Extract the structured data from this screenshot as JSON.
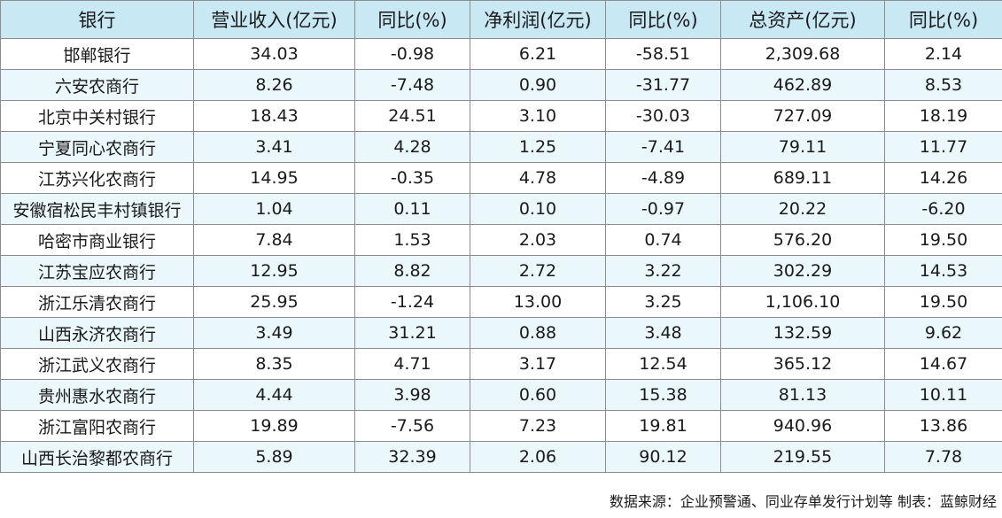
{
  "colors": {
    "header_bg": "#c8e8f3",
    "row_odd_bg": "#ffffff",
    "row_even_bg": "#eaf7fb",
    "border": "#8c8c8c"
  },
  "table": {
    "headers": [
      "银行",
      "营业收入(亿元)",
      "同比(%)",
      "净利润(亿元)",
      "同比(%)",
      "总资产(亿元)",
      "同比(%)"
    ],
    "rows": [
      [
        "邯郸银行",
        "34.03",
        "-0.98",
        "6.21",
        "-58.51",
        "2,309.68",
        "2.14"
      ],
      [
        "六安农商行",
        "8.26",
        "-7.48",
        "0.90",
        "-31.77",
        "462.89",
        "8.53"
      ],
      [
        "北京中关村银行",
        "18.43",
        "24.51",
        "3.10",
        "-30.03",
        "727.09",
        "18.19"
      ],
      [
        "宁夏同心农商行",
        "3.41",
        "4.28",
        "1.25",
        "-7.41",
        "79.11",
        "11.77"
      ],
      [
        "江苏兴化农商行",
        "14.95",
        "-0.35",
        "4.78",
        "-4.89",
        "689.11",
        "14.26"
      ],
      [
        "安徽宿松民丰村镇银行",
        "1.04",
        "0.11",
        "0.10",
        "-0.97",
        "20.22",
        "-6.20"
      ],
      [
        "哈密市商业银行",
        "7.84",
        "1.53",
        "2.03",
        "0.74",
        "576.20",
        "19.50"
      ],
      [
        "江苏宝应农商行",
        "12.95",
        "8.82",
        "2.72",
        "3.22",
        "302.29",
        "14.53"
      ],
      [
        "浙江乐清农商行",
        "25.95",
        "-1.24",
        "13.00",
        "3.25",
        "1,106.10",
        "19.50"
      ],
      [
        "山西永济农商行",
        "3.49",
        "31.21",
        "0.88",
        "3.48",
        "132.59",
        "9.62"
      ],
      [
        "浙江武义农商行",
        "8.35",
        "4.71",
        "3.17",
        "12.54",
        "365.12",
        "14.67"
      ],
      [
        "贵州惠水农商行",
        "4.44",
        "3.98",
        "0.60",
        "15.38",
        "81.13",
        "10.11"
      ],
      [
        "浙江富阳农商行",
        "19.89",
        "-7.56",
        "7.23",
        "19.81",
        "940.96",
        "13.86"
      ],
      [
        "山西长治黎都农商行",
        "5.89",
        "32.39",
        "2.06",
        "90.12",
        "219.55",
        "7.78"
      ]
    ]
  },
  "footer": {
    "text": "数据来源：企业预警通、同业存单发行计划等  制表：蓝鲸财经"
  }
}
